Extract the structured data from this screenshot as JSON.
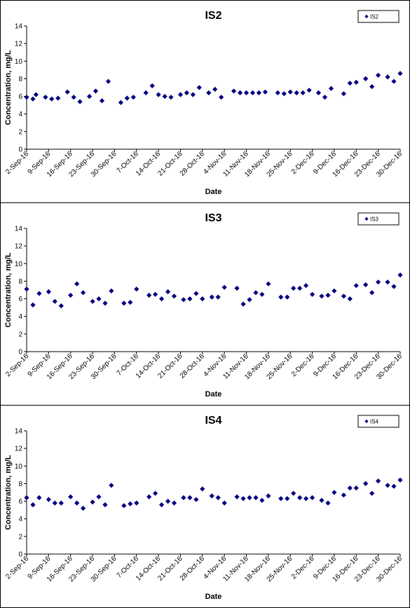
{
  "chart_data": [
    {
      "type": "scatter",
      "title": "IS2",
      "xlabel": "Date",
      "ylabel": "Concentration, mg/L",
      "legend": "top-right",
      "ylim": [
        0,
        14
      ],
      "yticks": [
        0,
        2,
        4,
        6,
        8,
        10,
        12,
        14
      ],
      "xticks": [
        "2-Sep-16",
        "9-Sep-16",
        "16-Sep-16",
        "23-Sep-16",
        "30-Sep-16",
        "7-Oct-16",
        "14-Oct-16",
        "21-Oct-16",
        "28-Oct-16",
        "4-Nov-16",
        "11-Nov-16",
        "18-Nov-16",
        "25-Nov-16",
        "2-Dec-16",
        "9-Dec-16",
        "16-Dec-16",
        "23-Dec-16",
        "30-Dec-16"
      ],
      "color": "#000080",
      "series": [
        {
          "name": "IS2",
          "points": [
            [
              "2-Sep-16",
              5.9
            ],
            [
              "4-Sep-16",
              5.7
            ],
            [
              "5-Sep-16",
              6.2
            ],
            [
              "8-Sep-16",
              5.9
            ],
            [
              "10-Sep-16",
              5.7
            ],
            [
              "12-Sep-16",
              5.8
            ],
            [
              "15-Sep-16",
              6.5
            ],
            [
              "17-Sep-16",
              5.9
            ],
            [
              "19-Sep-16",
              5.4
            ],
            [
              "22-Sep-16",
              6.0
            ],
            [
              "24-Sep-16",
              6.6
            ],
            [
              "26-Sep-16",
              5.5
            ],
            [
              "28-Sep-16",
              7.7
            ],
            [
              "2-Oct-16",
              5.3
            ],
            [
              "4-Oct-16",
              5.8
            ],
            [
              "6-Oct-16",
              5.9
            ],
            [
              "10-Oct-16",
              6.4
            ],
            [
              "12-Oct-16",
              7.2
            ],
            [
              "14-Oct-16",
              6.2
            ],
            [
              "16-Oct-16",
              6.0
            ],
            [
              "18-Oct-16",
              5.9
            ],
            [
              "21-Oct-16",
              6.2
            ],
            [
              "23-Oct-16",
              6.4
            ],
            [
              "25-Oct-16",
              6.2
            ],
            [
              "27-Oct-16",
              7.0
            ],
            [
              "30-Oct-16",
              6.4
            ],
            [
              "1-Nov-16",
              6.8
            ],
            [
              "3-Nov-16",
              5.9
            ],
            [
              "7-Nov-16",
              6.6
            ],
            [
              "9-Nov-16",
              6.4
            ],
            [
              "11-Nov-16",
              6.4
            ],
            [
              "13-Nov-16",
              6.4
            ],
            [
              "15-Nov-16",
              6.4
            ],
            [
              "17-Nov-16",
              6.5
            ],
            [
              "21-Nov-16",
              6.4
            ],
            [
              "23-Nov-16",
              6.3
            ],
            [
              "25-Nov-16",
              6.5
            ],
            [
              "27-Nov-16",
              6.4
            ],
            [
              "29-Nov-16",
              6.4
            ],
            [
              "1-Dec-16",
              6.7
            ],
            [
              "4-Dec-16",
              6.4
            ],
            [
              "6-Dec-16",
              5.9
            ],
            [
              "8-Dec-16",
              6.9
            ],
            [
              "12-Dec-16",
              6.3
            ],
            [
              "14-Dec-16",
              7.5
            ],
            [
              "16-Dec-16",
              7.6
            ],
            [
              "19-Dec-16",
              8.0
            ],
            [
              "21-Dec-16",
              7.1
            ],
            [
              "23-Dec-16",
              8.4
            ],
            [
              "26-Dec-16",
              8.2
            ],
            [
              "28-Dec-16",
              7.7
            ],
            [
              "30-Dec-16",
              8.6
            ]
          ]
        }
      ]
    },
    {
      "type": "scatter",
      "title": "IS3",
      "xlabel": "Date",
      "ylabel": "Concentration, mg/L",
      "legend": "top-right",
      "ylim": [
        0,
        14
      ],
      "yticks": [
        0,
        2,
        4,
        6,
        8,
        10,
        12,
        14
      ],
      "xticks": [
        "2-Sep-16",
        "9-Sep-16",
        "16-Sep-16",
        "23-Sep-16",
        "30-Sep-16",
        "7-Oct-16",
        "14-Oct-16",
        "21-Oct-16",
        "28-Oct-16",
        "4-Nov-16",
        "11-Nov-16",
        "18-Nov-16",
        "25-Nov-16",
        "2-Dec-16",
        "9-Dec-16",
        "16-Dec-16",
        "23-Dec-16",
        "30-Dec-16"
      ],
      "color": "#000080",
      "series": [
        {
          "name": "IS3",
          "points": [
            [
              "2-Sep-16",
              7.1
            ],
            [
              "4-Sep-16",
              5.3
            ],
            [
              "6-Sep-16",
              6.6
            ],
            [
              "9-Sep-16",
              6.8
            ],
            [
              "11-Sep-16",
              5.7
            ],
            [
              "13-Sep-16",
              5.2
            ],
            [
              "16-Sep-16",
              6.4
            ],
            [
              "18-Sep-16",
              7.7
            ],
            [
              "20-Sep-16",
              6.7
            ],
            [
              "23-Sep-16",
              5.7
            ],
            [
              "25-Sep-16",
              6.0
            ],
            [
              "27-Sep-16",
              5.5
            ],
            [
              "29-Sep-16",
              6.9
            ],
            [
              "3-Oct-16",
              5.5
            ],
            [
              "5-Oct-16",
              5.6
            ],
            [
              "7-Oct-16",
              7.1
            ],
            [
              "11-Oct-16",
              6.4
            ],
            [
              "13-Oct-16",
              6.5
            ],
            [
              "15-Oct-16",
              6.0
            ],
            [
              "17-Oct-16",
              6.8
            ],
            [
              "19-Oct-16",
              6.3
            ],
            [
              "22-Oct-16",
              5.9
            ],
            [
              "24-Oct-16",
              6.0
            ],
            [
              "26-Oct-16",
              6.6
            ],
            [
              "28-Oct-16",
              6.0
            ],
            [
              "31-Oct-16",
              6.2
            ],
            [
              "2-Nov-16",
              6.2
            ],
            [
              "4-Nov-16",
              7.3
            ],
            [
              "8-Nov-16",
              7.2
            ],
            [
              "10-Nov-16",
              5.4
            ],
            [
              "12-Nov-16",
              5.9
            ],
            [
              "14-Nov-16",
              6.7
            ],
            [
              "16-Nov-16",
              6.5
            ],
            [
              "18-Nov-16",
              7.7
            ],
            [
              "22-Nov-16",
              6.2
            ],
            [
              "24-Nov-16",
              6.2
            ],
            [
              "26-Nov-16",
              7.2
            ],
            [
              "28-Nov-16",
              7.2
            ],
            [
              "30-Nov-16",
              7.5
            ],
            [
              "2-Dec-16",
              6.5
            ],
            [
              "5-Dec-16",
              6.3
            ],
            [
              "7-Dec-16",
              6.4
            ],
            [
              "9-Dec-16",
              6.9
            ],
            [
              "12-Dec-16",
              6.3
            ],
            [
              "14-Dec-16",
              6.0
            ],
            [
              "16-Dec-16",
              7.5
            ],
            [
              "19-Dec-16",
              7.6
            ],
            [
              "21-Dec-16",
              6.7
            ],
            [
              "23-Dec-16",
              7.9
            ],
            [
              "26-Dec-16",
              7.9
            ],
            [
              "28-Dec-16",
              7.4
            ],
            [
              "30-Dec-16",
              8.7
            ]
          ]
        }
      ]
    },
    {
      "type": "scatter",
      "title": "IS4",
      "xlabel": "Date",
      "ylabel": "Concentration, mg/L",
      "legend": "top-right",
      "ylim": [
        0,
        14
      ],
      "yticks": [
        0,
        2,
        4,
        6,
        8,
        10,
        12,
        14
      ],
      "xticks": [
        "2-Sep-16",
        "9-Sep-16",
        "16-Sep-16",
        "23-Sep-16",
        "30-Sep-16",
        "7-Oct-16",
        "14-Oct-16",
        "21-Oct-16",
        "28-Oct-16",
        "4-Nov-16",
        "11-Nov-16",
        "18-Nov-16",
        "25-Nov-16",
        "2-Dec-16",
        "9-Dec-16",
        "16-Dec-16",
        "23-Dec-16",
        "30-Dec-16"
      ],
      "color": "#000080",
      "series": [
        {
          "name": "IS4",
          "points": [
            [
              "2-Sep-16",
              6.4
            ],
            [
              "4-Sep-16",
              5.6
            ],
            [
              "6-Sep-16",
              6.4
            ],
            [
              "9-Sep-16",
              6.2
            ],
            [
              "11-Sep-16",
              5.8
            ],
            [
              "13-Sep-16",
              5.8
            ],
            [
              "16-Sep-16",
              6.5
            ],
            [
              "18-Sep-16",
              5.8
            ],
            [
              "20-Sep-16",
              5.2
            ],
            [
              "23-Sep-16",
              5.9
            ],
            [
              "25-Sep-16",
              6.5
            ],
            [
              "27-Sep-16",
              5.6
            ],
            [
              "29-Sep-16",
              7.8
            ],
            [
              "3-Oct-16",
              5.5
            ],
            [
              "5-Oct-16",
              5.7
            ],
            [
              "7-Oct-16",
              5.8
            ],
            [
              "11-Oct-16",
              6.5
            ],
            [
              "13-Oct-16",
              6.9
            ],
            [
              "15-Oct-16",
              5.6
            ],
            [
              "17-Oct-16",
              6.0
            ],
            [
              "19-Oct-16",
              5.8
            ],
            [
              "22-Oct-16",
              6.4
            ],
            [
              "24-Oct-16",
              6.4
            ],
            [
              "26-Oct-16",
              6.2
            ],
            [
              "28-Oct-16",
              7.4
            ],
            [
              "31-Oct-16",
              6.6
            ],
            [
              "2-Nov-16",
              6.4
            ],
            [
              "4-Nov-16",
              5.8
            ],
            [
              "8-Nov-16",
              6.5
            ],
            [
              "10-Nov-16",
              6.3
            ],
            [
              "12-Nov-16",
              6.4
            ],
            [
              "14-Nov-16",
              6.4
            ],
            [
              "16-Nov-16",
              6.1
            ],
            [
              "18-Nov-16",
              6.6
            ],
            [
              "22-Nov-16",
              6.3
            ],
            [
              "24-Nov-16",
              6.3
            ],
            [
              "26-Nov-16",
              6.9
            ],
            [
              "28-Nov-16",
              6.4
            ],
            [
              "30-Nov-16",
              6.3
            ],
            [
              "2-Dec-16",
              6.4
            ],
            [
              "5-Dec-16",
              6.1
            ],
            [
              "7-Dec-16",
              5.8
            ],
            [
              "9-Dec-16",
              7.0
            ],
            [
              "12-Dec-16",
              6.7
            ],
            [
              "14-Dec-16",
              7.5
            ],
            [
              "16-Dec-16",
              7.5
            ],
            [
              "19-Dec-16",
              8.0
            ],
            [
              "21-Dec-16",
              6.9
            ],
            [
              "23-Dec-16",
              8.3
            ],
            [
              "26-Dec-16",
              7.8
            ],
            [
              "28-Dec-16",
              7.7
            ],
            [
              "30-Dec-16",
              8.4
            ]
          ]
        }
      ]
    }
  ]
}
